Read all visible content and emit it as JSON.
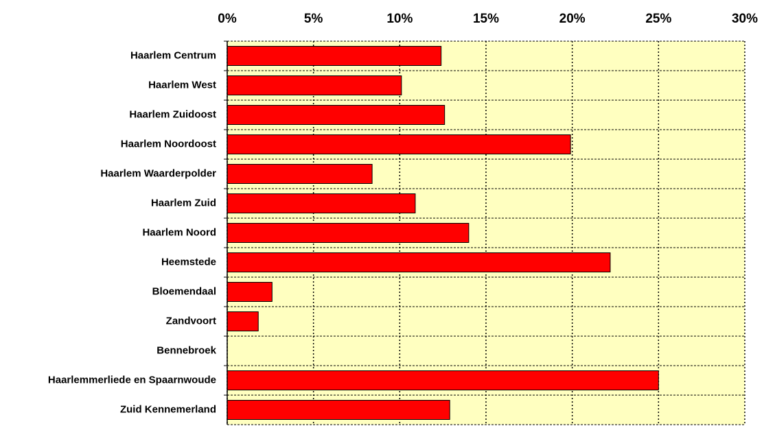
{
  "chart_data": {
    "type": "bar",
    "orientation": "horizontal",
    "categories": [
      "Haarlem Centrum",
      "Haarlem West",
      "Haarlem Zuidoost",
      "Haarlem Noordoost",
      "Haarlem Waarderpolder",
      "Haarlem Zuid",
      "Haarlem Noord",
      "Heemstede",
      "Bloemendaal",
      "Zandvoort",
      "Bennebroek",
      "Haarlemmerliede en Spaarnwoude",
      "Zuid Kennemerland"
    ],
    "values": [
      12.4,
      10.1,
      12.6,
      19.9,
      8.4,
      10.9,
      14.0,
      22.2,
      2.6,
      1.8,
      0,
      25.0,
      12.9
    ],
    "color": "#ff0000",
    "xlim": [
      0,
      30
    ],
    "xticks": [
      {
        "value": 0,
        "label": "0%"
      },
      {
        "value": 5,
        "label": "5%"
      },
      {
        "value": 10,
        "label": "10%"
      },
      {
        "value": 15,
        "label": "15%"
      },
      {
        "value": 20,
        "label": "20%"
      },
      {
        "value": 25,
        "label": "25%"
      },
      {
        "value": 30,
        "label": "30%"
      }
    ],
    "grid": true
  }
}
